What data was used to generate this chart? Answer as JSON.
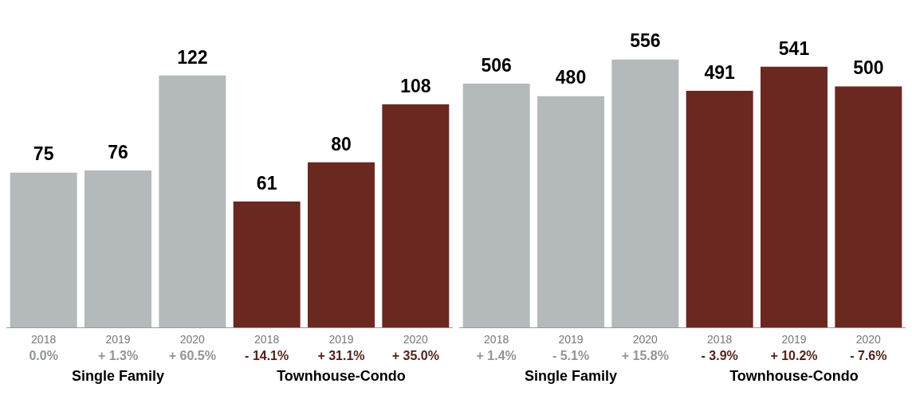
{
  "chart_data": [
    {
      "type": "bar",
      "categories": [
        "2018",
        "2019",
        "2020",
        "2018",
        "2019",
        "2020"
      ],
      "data_labels": true,
      "grid": false,
      "legend": false,
      "series": [
        {
          "name": "Single Family",
          "color": "#b4babb",
          "values": [
            75,
            76,
            122,
            null,
            null,
            null
          ]
        },
        {
          "name": "Townhouse-Condo",
          "color": "#6b2821",
          "values": [
            null,
            null,
            null,
            61,
            80,
            108
          ]
        }
      ],
      "annotations": [
        "0.0%",
        "+ 1.3%",
        "+ 60.5%",
        "- 14.1%",
        "+ 31.1%",
        "+ 35.0%"
      ]
    },
    {
      "type": "bar",
      "categories": [
        "2018",
        "2019",
        "2020",
        "2018",
        "2019",
        "2020"
      ],
      "data_labels": true,
      "grid": false,
      "legend": false,
      "series": [
        {
          "name": "Single Family",
          "color": "#b4babb",
          "values": [
            506,
            480,
            556,
            null,
            null,
            null
          ]
        },
        {
          "name": "Townhouse-Condo",
          "color": "#6b2821",
          "values": [
            null,
            null,
            null,
            491,
            541,
            500
          ]
        }
      ],
      "annotations": [
        "+ 1.4%",
        "- 5.1%",
        "+ 15.8%",
        "- 3.9%",
        "+ 10.2%",
        "- 7.6%"
      ]
    }
  ]
}
